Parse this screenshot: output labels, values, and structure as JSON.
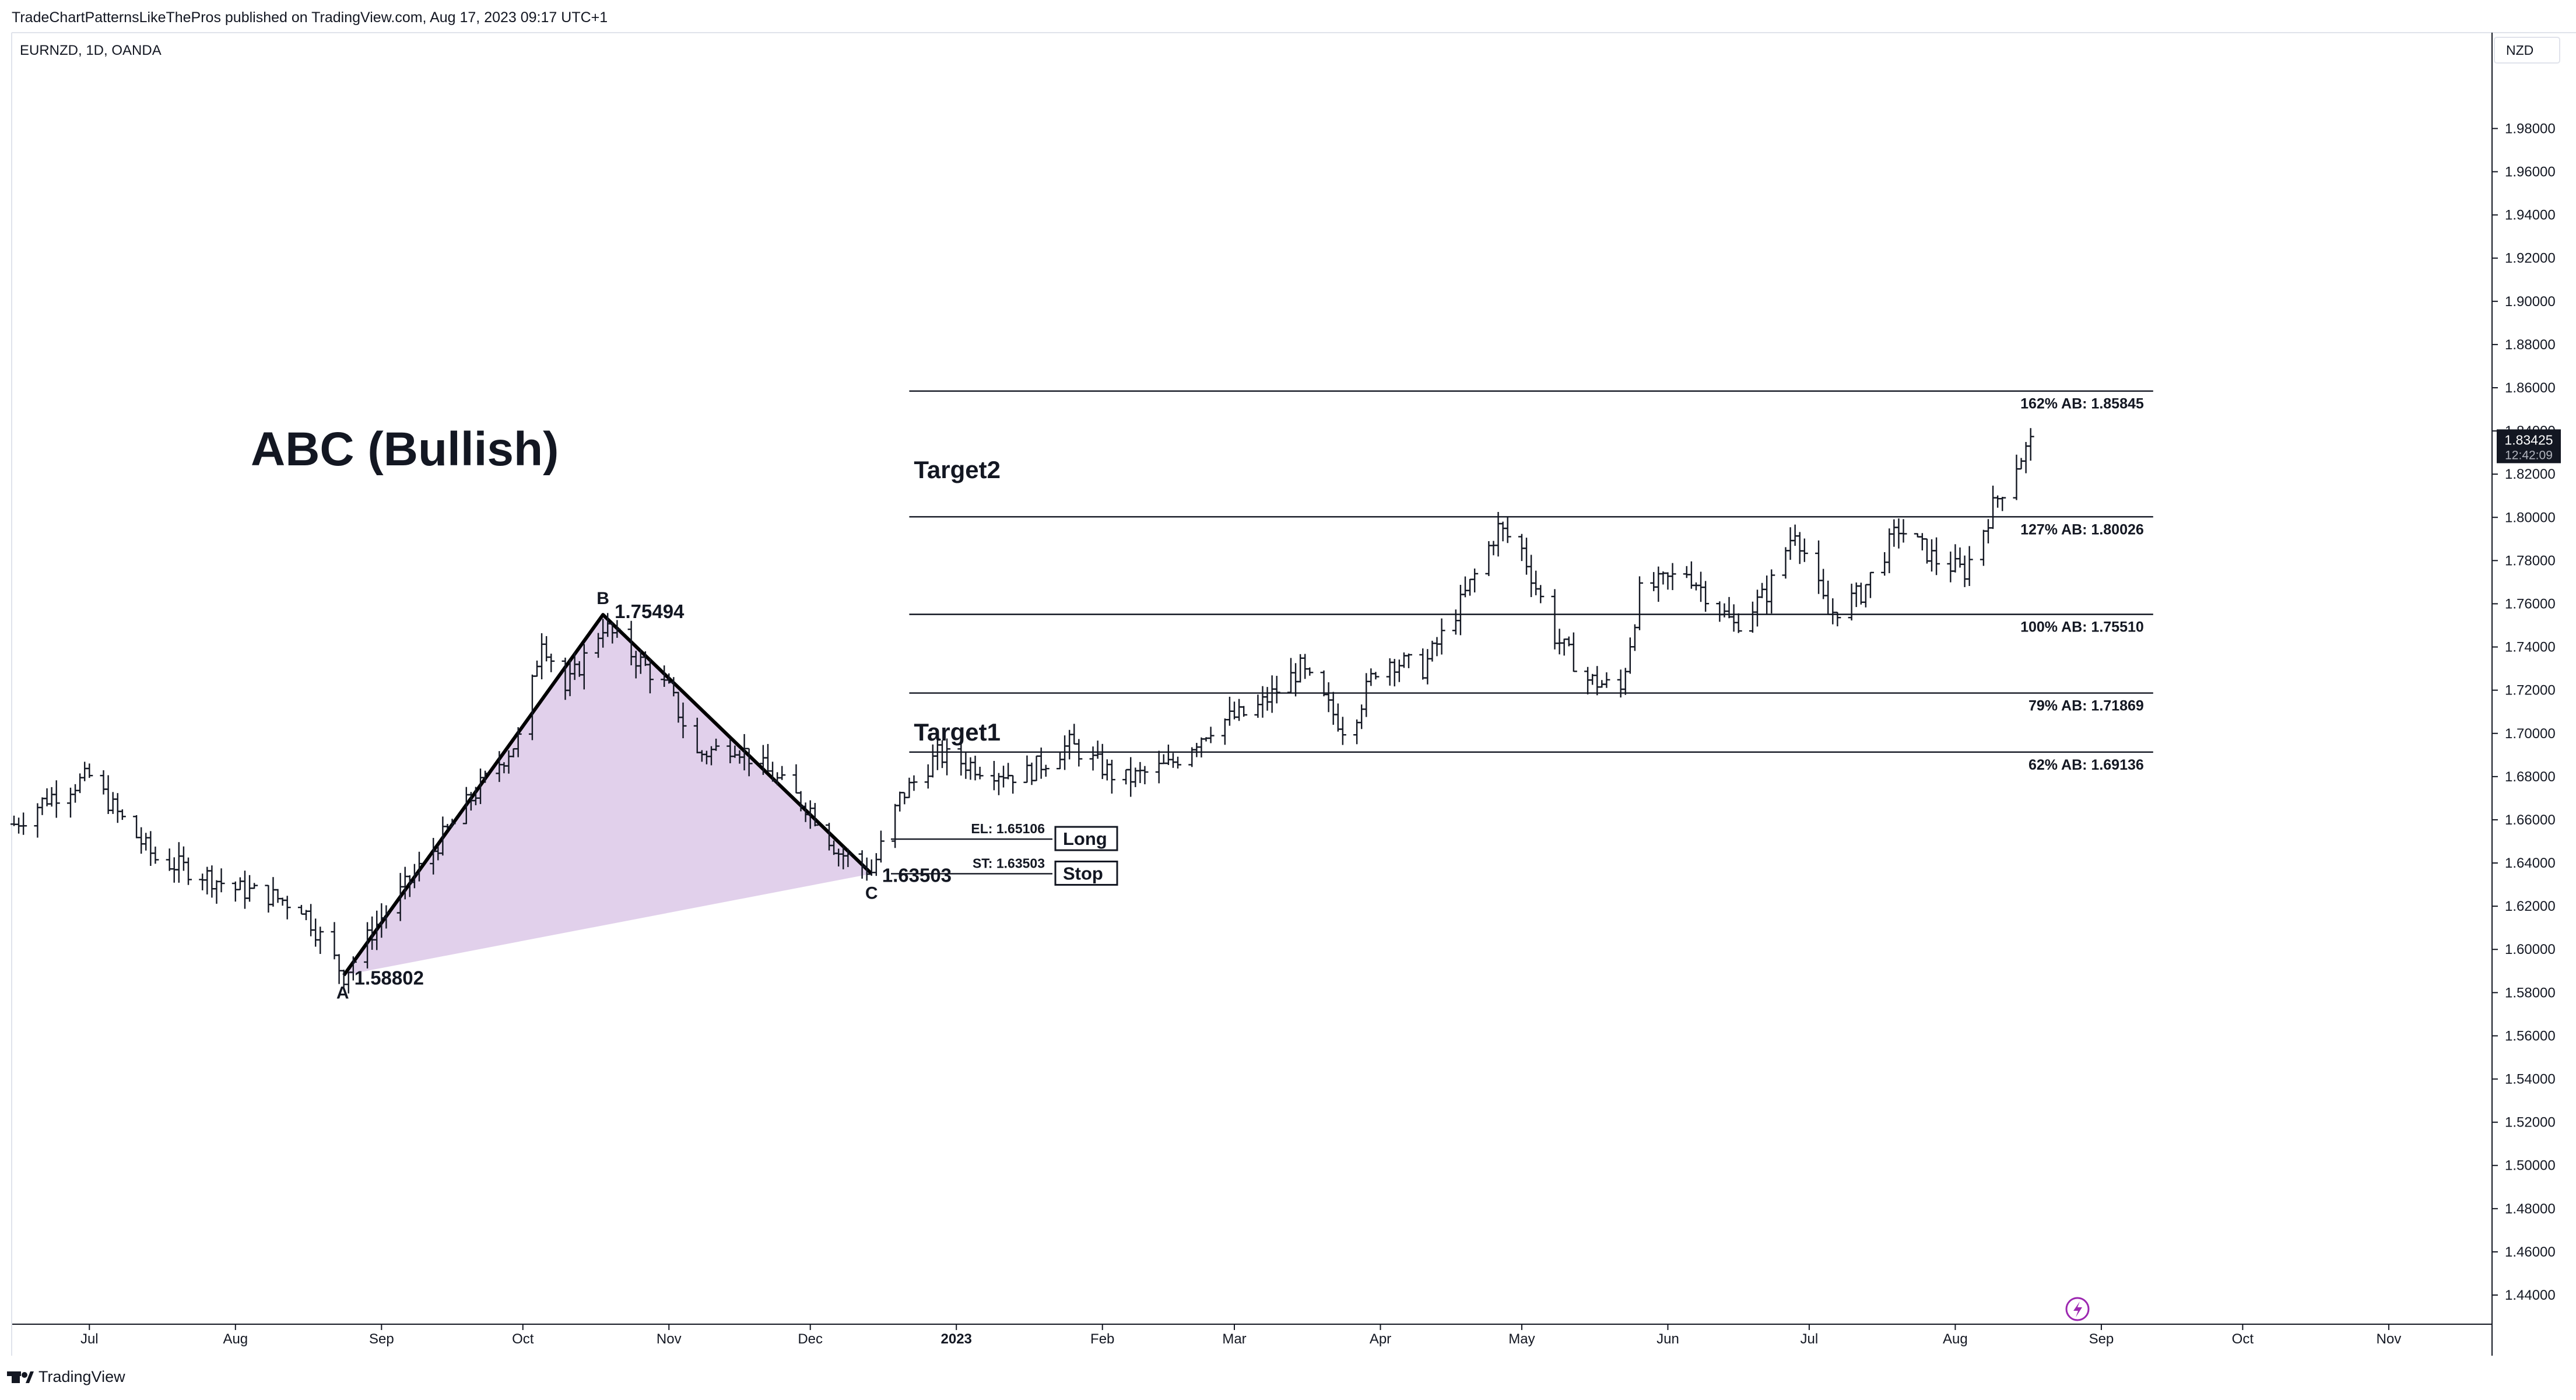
{
  "header": {
    "published_by": "TradeChartPatternsLikeThePros published on TradingView.com, Aug 17, 2023 09:17 UTC+1",
    "symbol": "EURNZD, 1D, OANDA",
    "currency": "NZD"
  },
  "footer": {
    "brand": "TradingView",
    "logo_icon": "tradingview-logo-icon"
  },
  "price_badge": {
    "price": "1.83425",
    "countdown": "12:42:09"
  },
  "chart_data": {
    "type": "ohlc",
    "title": "ABC (Bullish)",
    "x_labels": [
      {
        "label": "Jul",
        "date": "2022-07-01"
      },
      {
        "label": "Aug",
        "date": "2022-08-01"
      },
      {
        "label": "Sep",
        "date": "2022-09-01"
      },
      {
        "label": "Oct",
        "date": "2022-10-01"
      },
      {
        "label": "Nov",
        "date": "2022-11-01"
      },
      {
        "label": "Dec",
        "date": "2022-12-01"
      },
      {
        "label": "2023",
        "date": "2023-01-01",
        "bold": true
      },
      {
        "label": "Feb",
        "date": "2023-02-01"
      },
      {
        "label": "Mar",
        "date": "2023-03-01"
      },
      {
        "label": "Apr",
        "date": "2023-04-01"
      },
      {
        "label": "May",
        "date": "2023-05-01"
      },
      {
        "label": "Jun",
        "date": "2023-06-01"
      },
      {
        "label": "Jul",
        "date": "2023-07-01"
      },
      {
        "label": "Aug",
        "date": "2023-08-01"
      },
      {
        "label": "Sep",
        "date": "2023-09-01"
      },
      {
        "label": "Oct",
        "date": "2023-10-01"
      },
      {
        "label": "Nov",
        "date": "2023-11-01"
      }
    ],
    "y_ticks": [
      "1.98000",
      "1.96000",
      "1.94000",
      "1.92000",
      "1.90000",
      "1.88000",
      "1.86000",
      "1.84000",
      "1.82000",
      "1.80000",
      "1.78000",
      "1.76000",
      "1.74000",
      "1.72000",
      "1.70000",
      "1.68000",
      "1.66000",
      "1.64000",
      "1.62000",
      "1.60000",
      "1.58000",
      "1.56000",
      "1.54000",
      "1.52000",
      "1.50000",
      "1.48000",
      "1.46000",
      "1.44000"
    ],
    "ylim": [
      1.4338,
      1.9936
    ],
    "xlim": [
      "2022-06-15",
      "2023-11-15"
    ],
    "price_anchors": [
      {
        "date": "2022-06-15",
        "close": 1.658
      },
      {
        "date": "2022-06-22",
        "close": 1.67
      },
      {
        "date": "2022-07-01",
        "close": 1.68
      },
      {
        "date": "2022-07-08",
        "close": 1.66
      },
      {
        "date": "2022-07-15",
        "close": 1.642
      },
      {
        "date": "2022-07-25",
        "close": 1.635
      },
      {
        "date": "2022-08-01",
        "close": 1.628
      },
      {
        "date": "2022-08-08",
        "close": 1.625
      },
      {
        "date": "2022-08-15",
        "close": 1.62
      },
      {
        "date": "2022-08-24",
        "close": 1.588
      },
      {
        "date": "2022-09-01",
        "close": 1.615
      },
      {
        "date": "2022-09-10",
        "close": 1.64
      },
      {
        "date": "2022-09-20",
        "close": 1.67
      },
      {
        "date": "2022-10-01",
        "close": 1.7
      },
      {
        "date": "2022-10-05",
        "close": 1.745
      },
      {
        "date": "2022-10-10",
        "close": 1.72
      },
      {
        "date": "2022-10-18",
        "close": 1.75
      },
      {
        "date": "2022-10-25",
        "close": 1.735
      },
      {
        "date": "2022-11-01",
        "close": 1.72
      },
      {
        "date": "2022-11-07",
        "close": 1.69
      },
      {
        "date": "2022-11-15",
        "close": 1.695
      },
      {
        "date": "2022-11-23",
        "close": 1.68
      },
      {
        "date": "2022-12-01",
        "close": 1.665
      },
      {
        "date": "2022-12-07",
        "close": 1.645
      },
      {
        "date": "2022-12-14",
        "close": 1.636
      },
      {
        "date": "2022-12-20",
        "close": 1.67
      },
      {
        "date": "2022-12-28",
        "close": 1.69
      },
      {
        "date": "2023-01-05",
        "close": 1.685
      },
      {
        "date": "2023-01-15",
        "close": 1.68
      },
      {
        "date": "2023-01-25",
        "close": 1.695
      },
      {
        "date": "2023-02-05",
        "close": 1.678
      },
      {
        "date": "2023-02-15",
        "close": 1.685
      },
      {
        "date": "2023-02-25",
        "close": 1.705
      },
      {
        "date": "2023-03-05",
        "close": 1.71
      },
      {
        "date": "2023-03-15",
        "close": 1.73
      },
      {
        "date": "2023-03-25",
        "close": 1.7
      },
      {
        "date": "2023-04-01",
        "close": 1.735
      },
      {
        "date": "2023-04-10",
        "close": 1.73
      },
      {
        "date": "2023-04-18",
        "close": 1.76
      },
      {
        "date": "2023-04-26",
        "close": 1.795
      },
      {
        "date": "2023-05-01",
        "close": 1.785
      },
      {
        "date": "2023-05-08",
        "close": 1.745
      },
      {
        "date": "2023-05-15",
        "close": 1.725
      },
      {
        "date": "2023-05-22",
        "close": 1.72
      },
      {
        "date": "2023-05-26",
        "close": 1.765
      },
      {
        "date": "2023-06-05",
        "close": 1.775
      },
      {
        "date": "2023-06-15",
        "close": 1.75
      },
      {
        "date": "2023-06-22",
        "close": 1.765
      },
      {
        "date": "2023-06-28",
        "close": 1.795
      },
      {
        "date": "2023-07-05",
        "close": 1.755
      },
      {
        "date": "2023-07-12",
        "close": 1.765
      },
      {
        "date": "2023-07-20",
        "close": 1.795
      },
      {
        "date": "2023-07-28",
        "close": 1.78
      },
      {
        "date": "2023-08-03",
        "close": 1.775
      },
      {
        "date": "2023-08-09",
        "close": 1.805
      },
      {
        "date": "2023-08-14",
        "close": 1.825
      },
      {
        "date": "2023-08-17",
        "close": 1.8343
      }
    ],
    "abc_pattern": {
      "points": [
        {
          "label": "A",
          "date": "2022-08-24",
          "price": 1.58802,
          "value_label": "1.58802"
        },
        {
          "label": "B",
          "date": "2022-10-18",
          "price": 1.75494,
          "value_label": "1.75494"
        },
        {
          "label": "C",
          "date": "2022-12-14",
          "price": 1.63503,
          "value_label": "1.63503"
        }
      ],
      "fill_color": "#e1d0eb",
      "line_color": "#000000"
    },
    "fib_levels": [
      {
        "label": "162% AB: 1.85845",
        "price": 1.85845
      },
      {
        "label": "127% AB: 1.80026",
        "price": 1.80026
      },
      {
        "label": "100% AB: 1.75510",
        "price": 1.7551
      },
      {
        "label": "79% AB: 1.71869",
        "price": 1.71869
      },
      {
        "label": "62% AB: 1.69136",
        "price": 1.69136
      }
    ],
    "fib_start_date": "2022-12-22",
    "fib_end_date": "2023-09-12",
    "targets": [
      {
        "label": "Target2",
        "price": 1.8225
      },
      {
        "label": "Target1",
        "price": 1.701
      }
    ],
    "entry": {
      "label": "EL: 1.65106",
      "price": 1.65106,
      "tag": "Long"
    },
    "stop": {
      "label": "ST: 1.63503",
      "price": 1.63503,
      "tag": "Stop"
    },
    "flash_icon": "lightning-icon"
  }
}
